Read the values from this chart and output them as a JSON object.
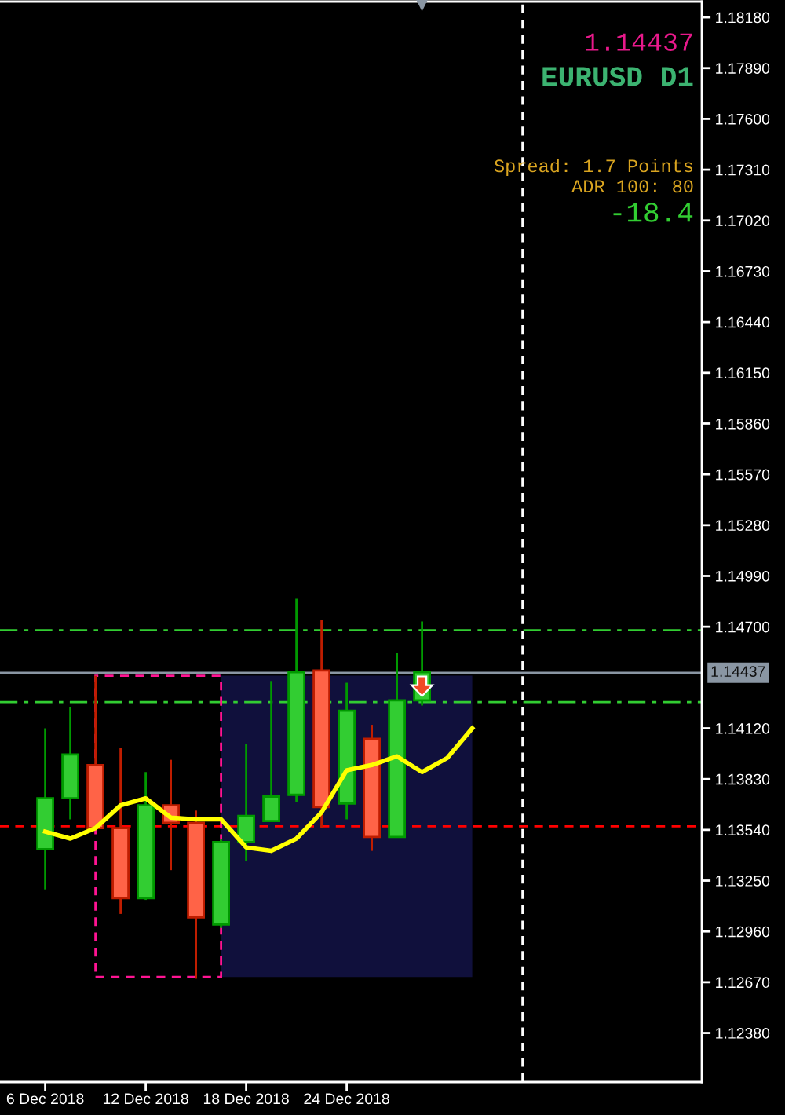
{
  "chart_data": {
    "type": "candlestick",
    "title": "EURUSD D1",
    "annotations": [
      "1.14437",
      "Spread: 1.7 Points",
      "ADR 100: 80",
      "-18.4"
    ],
    "categories": [
      "6 Dec 2018",
      null,
      null,
      null,
      "12 Dec 2018",
      null,
      null,
      null,
      "18 Dec 2018",
      null,
      null,
      null,
      "24 Dec 2018",
      null,
      null,
      null,
      null,
      null,
      null,
      null
    ],
    "ohlc": [
      [
        1.1343,
        1.1412,
        1.132,
        1.1372
      ],
      [
        1.1372,
        1.1424,
        1.136,
        1.1397
      ],
      [
        1.1391,
        1.1442,
        1.1354,
        1.1355
      ],
      [
        1.1355,
        1.1401,
        1.1306,
        1.1315
      ],
      [
        1.1315,
        1.1387,
        1.1314,
        1.1368
      ],
      [
        1.1368,
        1.1394,
        1.1331,
        1.1358
      ],
      [
        1.1358,
        1.1365,
        1.1269,
        1.1304
      ],
      [
        1.13,
        1.1349,
        1.1298,
        1.1347
      ],
      [
        1.1347,
        1.1403,
        1.1336,
        1.1362
      ],
      [
        1.1359,
        1.1439,
        1.1359,
        1.1373
      ],
      [
        1.1374,
        1.1486,
        1.137,
        1.1444
      ],
      [
        1.1445,
        1.1474,
        1.1355,
        1.1367
      ],
      [
        1.1369,
        1.1438,
        1.136,
        1.1422
      ],
      [
        1.1406,
        1.1414,
        1.1342,
        1.135
      ],
      [
        1.135,
        1.1455,
        1.135,
        1.1428
      ],
      [
        1.1428,
        1.1473,
        1.1425,
        1.1444
      ],
      null,
      null,
      null,
      null
    ],
    "colors": [
      "#32cd32",
      "#32cd32",
      "#ff6347",
      "#ff6347",
      "#32cd32",
      "#ff6347",
      "#ff6347",
      "#32cd32",
      "#32cd32",
      "#32cd32",
      "#32cd32",
      "#ff6347",
      "#32cd32",
      "#ff6347",
      "#32cd32",
      "#32cd32",
      null,
      null,
      null,
      null
    ],
    "series": [
      {
        "type": "line",
        "color": "#ffff00",
        "values": [
          1.1353,
          1.1349,
          1.1355,
          1.1368,
          1.1372,
          1.1361,
          1.136,
          1.136,
          1.1344,
          1.1342,
          1.1349,
          1.1364,
          1.1388,
          1.1391,
          1.1396,
          1.1387,
          1.1395,
          1.1412,
          null,
          null
        ]
      }
    ],
    "bands": [
      {
        "axis": "y",
        "from": 1.127,
        "to": 1.1442,
        "color": "#10103c"
      }
    ],
    "ylim": [
      1.121,
      1.1827
    ],
    "yticks": [
      {
        "value": 1.1818,
        "label": "1.18180"
      },
      {
        "value": 1.1789,
        "label": "1.17890"
      },
      {
        "value": 1.176,
        "label": "1.17600"
      },
      {
        "value": 1.1731,
        "label": "1.17310"
      },
      {
        "value": 1.1702,
        "label": "1.17020"
      },
      {
        "value": 1.1673,
        "label": "1.16730"
      },
      {
        "value": 1.1644,
        "label": "1.16440"
      },
      {
        "value": 1.1615,
        "label": "1.16150"
      },
      {
        "value": 1.1586,
        "label": "1.15860"
      },
      {
        "value": 1.1557,
        "label": "1.15570"
      },
      {
        "value": 1.1528,
        "label": "1.15280"
      },
      {
        "value": 1.1499,
        "label": "1.14990"
      },
      {
        "value": 1.147,
        "label": "1.14700"
      },
      {
        "value": 1.1412,
        "label": "1.14120"
      },
      {
        "value": 1.1383,
        "label": "1.13830"
      },
      {
        "value": 1.1354,
        "label": "1.13540"
      },
      {
        "value": 1.1325,
        "label": "1.13250"
      },
      {
        "value": 1.1296,
        "label": "1.12960"
      },
      {
        "value": 1.1267,
        "label": "1.12670"
      },
      {
        "value": 1.1238,
        "label": "1.12380"
      }
    ],
    "ref_lines": [
      {
        "axis": "y",
        "value": 1.1468,
        "color": "#32cd32",
        "line_style": "dashdot"
      },
      {
        "axis": "y",
        "value": 1.1427,
        "color": "#32cd32",
        "line_style": "dashdot"
      },
      {
        "axis": "y",
        "value": 1.1356,
        "color": "#ff0000",
        "line_style": "dashed"
      },
      {
        "axis": "y",
        "value": 1.14437,
        "label": "1.14437",
        "color": "#8a96a3",
        "line_style": "solid"
      }
    ]
  }
}
